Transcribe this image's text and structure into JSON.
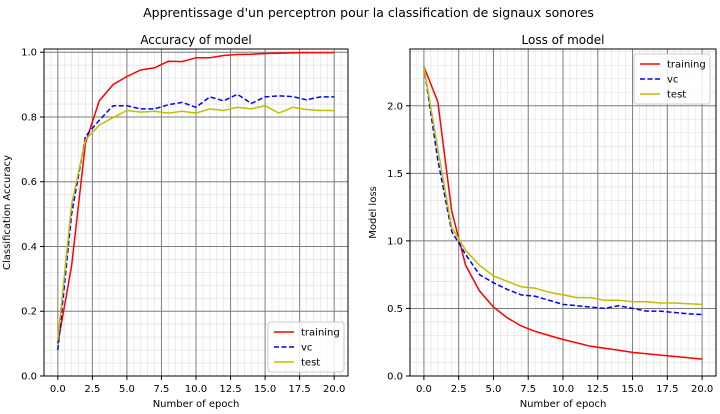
{
  "suptitle": "Apprentissage d'un perceptron pour la classification de signaux sonores",
  "chart_data": [
    {
      "type": "line",
      "title": "Accuracy of model",
      "xlabel": "Number of epoch",
      "ylabel": "Classification Accuracy",
      "xlim": [
        -1.0,
        21.0
      ],
      "ylim": [
        0.0,
        1.01
      ],
      "xticks": [
        0.0,
        2.5,
        5.0,
        7.5,
        10.0,
        12.5,
        15.0,
        17.5,
        20.0
      ],
      "xtick_labels": [
        "0.0",
        "2.5",
        "5.0",
        "7.5",
        "10.0",
        "12.5",
        "15.0",
        "17.5",
        "20.0"
      ],
      "yticks": [
        0.0,
        0.2,
        0.4,
        0.6,
        0.8,
        1.0
      ],
      "ytick_labels": [
        "0.0",
        "0.2",
        "0.4",
        "0.6",
        "0.8",
        "1.0"
      ],
      "grid": "major and minor",
      "legend_position": "lower right",
      "x": [
        0,
        1,
        2,
        3,
        4,
        5,
        6,
        7,
        8,
        9,
        10,
        11,
        12,
        13,
        14,
        15,
        16,
        17,
        18,
        19,
        20
      ],
      "series": [
        {
          "name": "training",
          "color": "#ff0000",
          "dash": "solid",
          "values": [
            0.1,
            0.34,
            0.72,
            0.85,
            0.9,
            0.925,
            0.945,
            0.952,
            0.972,
            0.971,
            0.983,
            0.983,
            0.99,
            0.993,
            0.994,
            0.996,
            0.997,
            0.998,
            0.999,
            0.999,
            0.999
          ]
        },
        {
          "name": "vc",
          "color": "#0000ff",
          "dash": "dashed",
          "values": [
            0.08,
            0.5,
            0.74,
            0.79,
            0.835,
            0.835,
            0.825,
            0.825,
            0.838,
            0.845,
            0.83,
            0.862,
            0.85,
            0.87,
            0.842,
            0.862,
            0.865,
            0.863,
            0.853,
            0.862,
            0.862
          ]
        },
        {
          "name": "test",
          "color": "#bfbf00",
          "dash": "solid",
          "values": [
            0.11,
            0.53,
            0.73,
            0.775,
            0.798,
            0.82,
            0.815,
            0.818,
            0.812,
            0.818,
            0.812,
            0.825,
            0.82,
            0.83,
            0.825,
            0.835,
            0.812,
            0.83,
            0.823,
            0.82,
            0.82
          ]
        }
      ]
    },
    {
      "type": "line",
      "title": "Loss of model",
      "xlabel": "Number of epoch",
      "ylabel": "Model loss",
      "xlim": [
        -1.0,
        21.0
      ],
      "ylim": [
        0.0,
        2.42
      ],
      "xticks": [
        0.0,
        2.5,
        5.0,
        7.5,
        10.0,
        12.5,
        15.0,
        17.5,
        20.0
      ],
      "xtick_labels": [
        "0.0",
        "2.5",
        "5.0",
        "7.5",
        "10.0",
        "12.5",
        "15.0",
        "17.5",
        "20.0"
      ],
      "yticks": [
        0.0,
        0.5,
        1.0,
        1.5,
        2.0
      ],
      "ytick_labels": [
        "0.0",
        "0.5",
        "1.0",
        "1.5",
        "2.0"
      ],
      "grid": "major and minor",
      "legend_position": "upper right",
      "x": [
        0,
        1,
        2,
        3,
        4,
        5,
        6,
        7,
        8,
        9,
        10,
        11,
        12,
        13,
        14,
        15,
        16,
        17,
        18,
        19,
        20
      ],
      "series": [
        {
          "name": "training",
          "color": "#ff0000",
          "dash": "solid",
          "values": [
            2.29,
            2.03,
            1.22,
            0.82,
            0.63,
            0.51,
            0.43,
            0.37,
            0.33,
            0.3,
            0.27,
            0.245,
            0.22,
            0.205,
            0.19,
            0.175,
            0.165,
            0.155,
            0.145,
            0.135,
            0.125
          ]
        },
        {
          "name": "vc",
          "color": "#0000ff",
          "dash": "dashed",
          "values": [
            2.29,
            1.6,
            1.07,
            0.9,
            0.75,
            0.69,
            0.64,
            0.6,
            0.59,
            0.56,
            0.53,
            0.52,
            0.51,
            0.5,
            0.52,
            0.5,
            0.48,
            0.48,
            0.47,
            0.46,
            0.455
          ]
        },
        {
          "name": "test",
          "color": "#bfbf00",
          "dash": "solid",
          "values": [
            2.29,
            1.68,
            1.1,
            0.93,
            0.82,
            0.74,
            0.7,
            0.66,
            0.65,
            0.62,
            0.6,
            0.58,
            0.58,
            0.56,
            0.56,
            0.55,
            0.55,
            0.54,
            0.54,
            0.535,
            0.53
          ]
        }
      ]
    }
  ]
}
